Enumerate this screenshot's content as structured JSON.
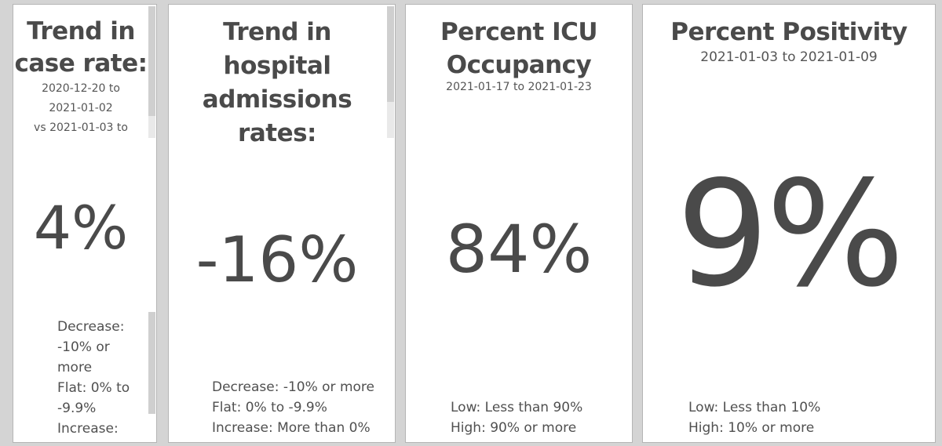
{
  "cards": [
    {
      "title_lines": [
        "Trend in",
        "case rate:"
      ],
      "subtitle_lines": [
        "2020-12-20 to",
        "2021-01-02",
        "vs 2021-01-03 to"
      ],
      "value": "4%",
      "legend": [
        "Decrease:",
        "-10% or",
        "more",
        "Flat: 0% to",
        "-9.9%",
        "Increase:"
      ]
    },
    {
      "title_lines": [
        "Trend in",
        "hospital",
        "admissions",
        "rates:"
      ],
      "value": "-16%",
      "legend": [
        "Decrease: -10% or more",
        "Flat: 0% to -9.9%",
        "Increase: More than 0%"
      ]
    },
    {
      "title_lines": [
        "Percent ICU",
        "Occupancy"
      ],
      "subtitle_lines": [
        "2021-01-17 to 2021-01-23"
      ],
      "value": "84%",
      "legend": [
        "Low: Less than 90%",
        "High: 90% or more"
      ]
    },
    {
      "title_lines": [
        "Percent Positivity"
      ],
      "subtitle_lines": [
        "2021-01-03 to 2021-01-09"
      ],
      "value": "9%",
      "legend": [
        "Low: Less than 10%",
        "High: 10% or more"
      ]
    }
  ]
}
